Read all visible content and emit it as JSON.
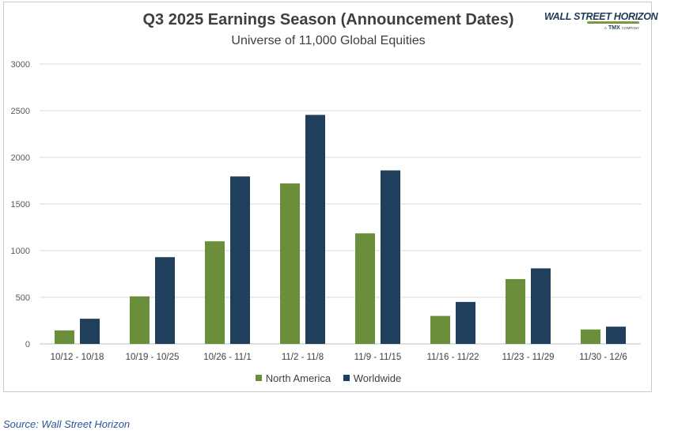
{
  "chart_data": {
    "type": "bar",
    "title": "Q3 2025 Earnings Season (Announcement Dates)",
    "subtitle": "Universe of 11,000 Global Equities",
    "categories": [
      "10/12 - 10/18",
      "10/19 - 10/25",
      "10/26 - 11/1",
      "11/2 - 11/8",
      "11/9 - 11/15",
      "11/16 - 11/22",
      "11/23 - 11/29",
      "11/30 - 12/6"
    ],
    "series": [
      {
        "name": "North America",
        "color": "#6b8e3a",
        "values": [
          145,
          510,
          1100,
          1720,
          1185,
          300,
          695,
          155
        ]
      },
      {
        "name": "Worldwide",
        "color": "#1f3f5c",
        "values": [
          270,
          930,
          1795,
          2455,
          1860,
          450,
          810,
          185
        ]
      }
    ],
    "ylim": [
      0,
      3000
    ],
    "yticks": [
      "0",
      "500",
      "1000",
      "1500",
      "2000",
      "2500",
      "3000"
    ],
    "ytick_values": [
      0,
      500,
      1000,
      1500,
      2000,
      2500,
      3000
    ],
    "grid": true,
    "legend_position": "bottom"
  },
  "logo": {
    "brand": "WALL STREET HORIZON",
    "tmx": "TMX",
    "tmx_prefix": "A",
    "tmx_suffix": "COMPANY"
  },
  "source": "Source: Wall Street Horizon"
}
